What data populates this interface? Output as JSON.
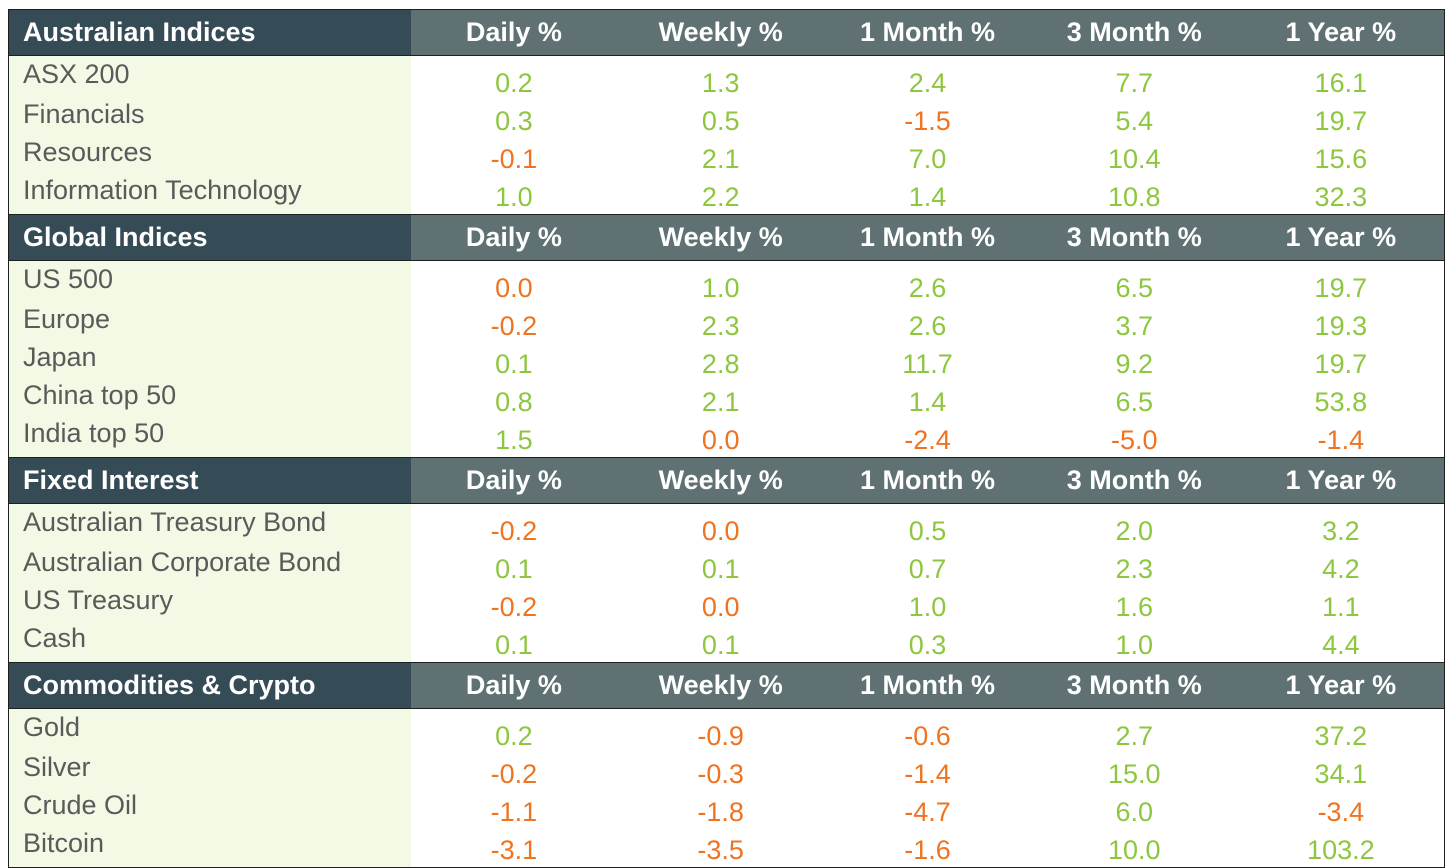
{
  "colors": {
    "header_title_bg": "#354b56",
    "header_bg": "#5f7173",
    "header_text": "#ffffff",
    "row_name_bg": "#f2fae6",
    "row_name_text": "#5a5a5a",
    "positive": "#8dc63f",
    "negative_or_zero": "#ee7421"
  },
  "columns": [
    "Daily %",
    "Weekly %",
    "1 Month %",
    "3 Month %",
    "1 Year %"
  ],
  "sections": [
    {
      "title": "Australian Indices",
      "rows": [
        {
          "name": "ASX 200",
          "values": [
            "0.2",
            "1.3",
            "2.4",
            "7.7",
            "16.1"
          ]
        },
        {
          "name": "Financials",
          "values": [
            "0.3",
            "0.5",
            "-1.5",
            "5.4",
            "19.7"
          ]
        },
        {
          "name": "Resources",
          "values": [
            "-0.1",
            "2.1",
            "7.0",
            "10.4",
            "15.6"
          ]
        },
        {
          "name": "Information Technology",
          "values": [
            "1.0",
            "2.2",
            "1.4",
            "10.8",
            "32.3"
          ]
        }
      ]
    },
    {
      "title": "Global Indices",
      "rows": [
        {
          "name": "US 500",
          "values": [
            "0.0",
            "1.0",
            "2.6",
            "6.5",
            "19.7"
          ]
        },
        {
          "name": "Europe",
          "values": [
            "-0.2",
            "2.3",
            "2.6",
            "3.7",
            "19.3"
          ]
        },
        {
          "name": "Japan",
          "values": [
            "0.1",
            "2.8",
            "11.7",
            "9.2",
            "19.7"
          ]
        },
        {
          "name": "China top 50",
          "values": [
            "0.8",
            "2.1",
            "1.4",
            "6.5",
            "53.8"
          ]
        },
        {
          "name": "India top 50",
          "values": [
            "1.5",
            "0.0",
            "-2.4",
            "-5.0",
            "-1.4"
          ]
        }
      ]
    },
    {
      "title": "Fixed Interest",
      "rows": [
        {
          "name": "Australian Treasury Bond",
          "values": [
            "-0.2",
            "0.0",
            "0.5",
            "2.0",
            "3.2"
          ]
        },
        {
          "name": "Australian Corporate Bond",
          "values": [
            "0.1",
            "0.1",
            "0.7",
            "2.3",
            "4.2"
          ]
        },
        {
          "name": "US Treasury",
          "values": [
            "-0.2",
            "0.0",
            "1.0",
            "1.6",
            "1.1"
          ]
        },
        {
          "name": "Cash",
          "values": [
            "0.1",
            "0.1",
            "0.3",
            "1.0",
            "4.4"
          ]
        }
      ]
    },
    {
      "title": "Commodities & Crypto",
      "rows": [
        {
          "name": "Gold",
          "values": [
            "0.2",
            "-0.9",
            "-0.6",
            "2.7",
            "37.2"
          ]
        },
        {
          "name": "Silver",
          "values": [
            "-0.2",
            "-0.3",
            "-1.4",
            "15.0",
            "34.1"
          ]
        },
        {
          "name": "Crude Oil",
          "values": [
            "-1.1",
            "-1.8",
            "-4.7",
            "6.0",
            "-3.4"
          ]
        },
        {
          "name": "Bitcoin",
          "values": [
            "-3.1",
            "-3.5",
            "-1.6",
            "10.0",
            "103.2"
          ]
        }
      ]
    }
  ]
}
